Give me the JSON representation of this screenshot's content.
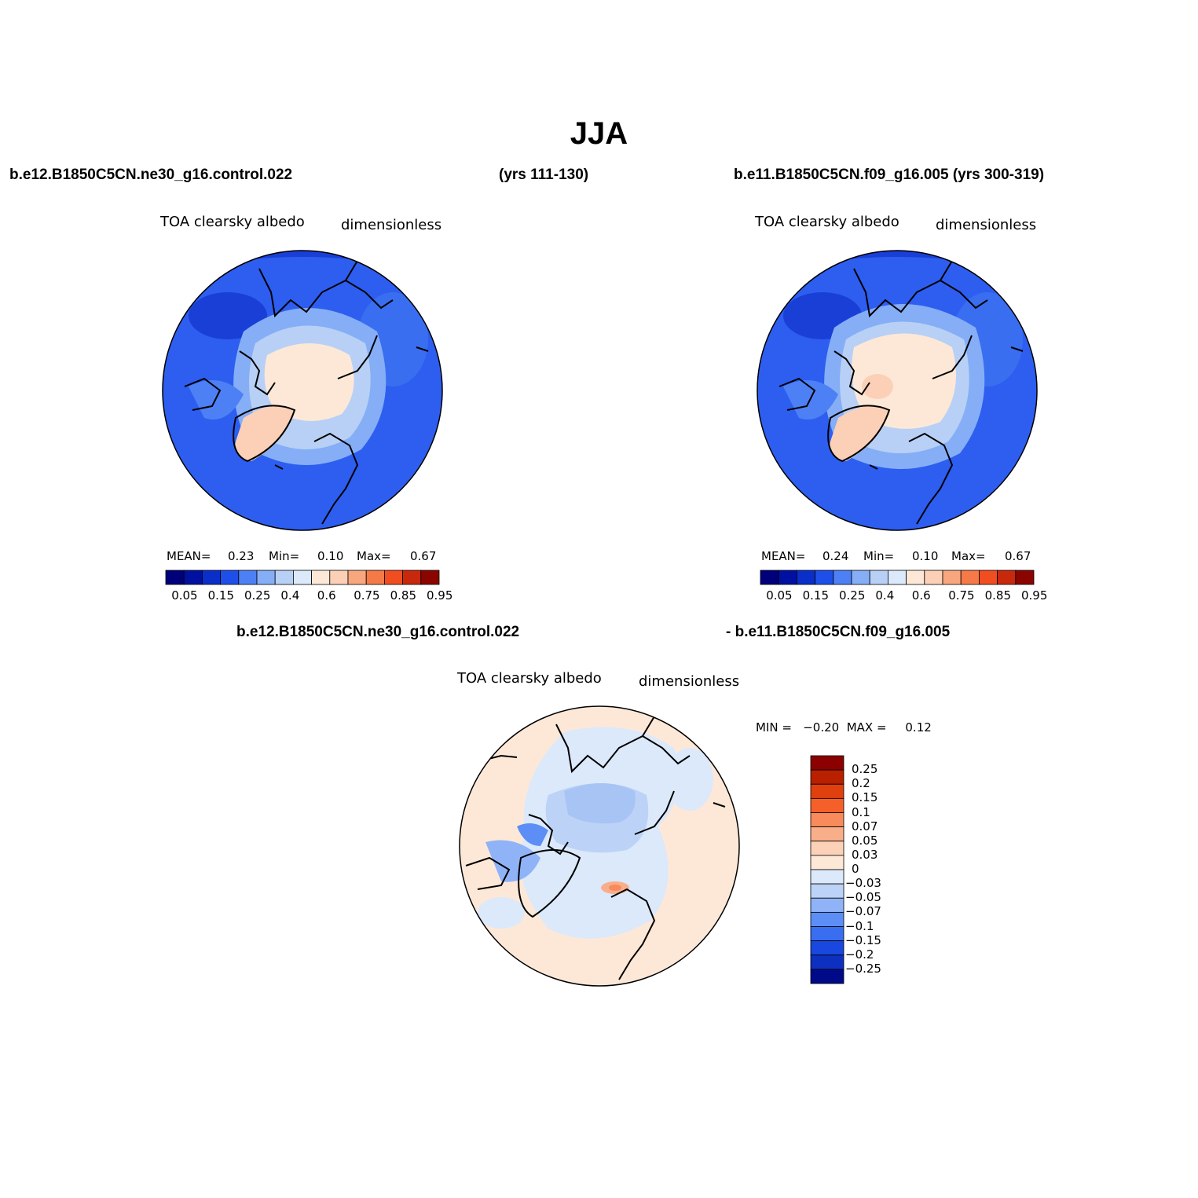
{
  "title": "JJA",
  "panel_left": {
    "case_label": "b.e12.B1850C5CN.ne30_g16.control.022",
    "years_label": "(yrs 111-130)",
    "field_name": "TOA clearsky albedo",
    "units": "dimensionless",
    "mean_label": "MEAN=",
    "mean_value": "0.23",
    "min_label": "Min=",
    "min_value": "0.10",
    "max_label": "Max=",
    "max_value": "0.67"
  },
  "panel_right": {
    "case_label": "b.e11.B1850C5CN.f09_g16.005 (yrs 300-319)",
    "field_name": "TOA clearsky albedo",
    "units": "dimensionless",
    "mean_label": "MEAN=",
    "mean_value": "0.24",
    "min_label": "Min=",
    "min_value": "0.10",
    "max_label": "Max=",
    "max_value": "0.67"
  },
  "panel_diff": {
    "case_label_a": "b.e12.B1850C5CN.ne30_g16.control.022",
    "case_label_b": "- b.e11.B1850C5CN.f09_g16.005",
    "field_name": "TOA clearsky albedo",
    "units": "dimensionless",
    "minmax_label": "MIN =   −0.20  MAX =     0.12"
  },
  "colorbar_abs": {
    "colors": [
      "#00007a",
      "#0010a0",
      "#0a2fc8",
      "#1e4fe8",
      "#4d80f5",
      "#85aef7",
      "#b8d0f5",
      "#dbe9fb",
      "#fde8d8",
      "#fbd0b6",
      "#f7a67e",
      "#f57a48",
      "#f04e20",
      "#c8280c",
      "#8b0500"
    ],
    "labels": [
      "0.05",
      "0.15",
      "0.25",
      "0.4",
      "0.6",
      "0.75",
      "0.85",
      "0.95"
    ]
  },
  "colorbar_diff": {
    "colors": [
      "#8b0000",
      "#b82000",
      "#e0400e",
      "#f5602a",
      "#f88a5c",
      "#f9ae8a",
      "#fbd2b8",
      "#fde8d8",
      "#dbe9fb",
      "#bcd3f7",
      "#8fb3f6",
      "#5c8ef5",
      "#3a6ef0",
      "#1848e0",
      "#0d30c0",
      "#000a88"
    ],
    "labels": [
      "0.25",
      "0.2",
      "0.15",
      "0.1",
      "0.07",
      "0.05",
      "0.03",
      "0",
      "−0.03",
      "−0.05",
      "−0.07",
      "−0.1",
      "−0.15",
      "−0.2",
      "−0.25"
    ]
  },
  "map_colors": {
    "ocean_low": "#1a3fd6",
    "ocean_mid": "#2d5ef0",
    "ice_edge": "#b8d0f5",
    "ice_pack": "#fde8d8",
    "greenland": "#fbd0b6",
    "diff_bg": "#dbe9fb",
    "diff_pos": "#fde8d8",
    "diff_neg": "#a8c4f5"
  }
}
